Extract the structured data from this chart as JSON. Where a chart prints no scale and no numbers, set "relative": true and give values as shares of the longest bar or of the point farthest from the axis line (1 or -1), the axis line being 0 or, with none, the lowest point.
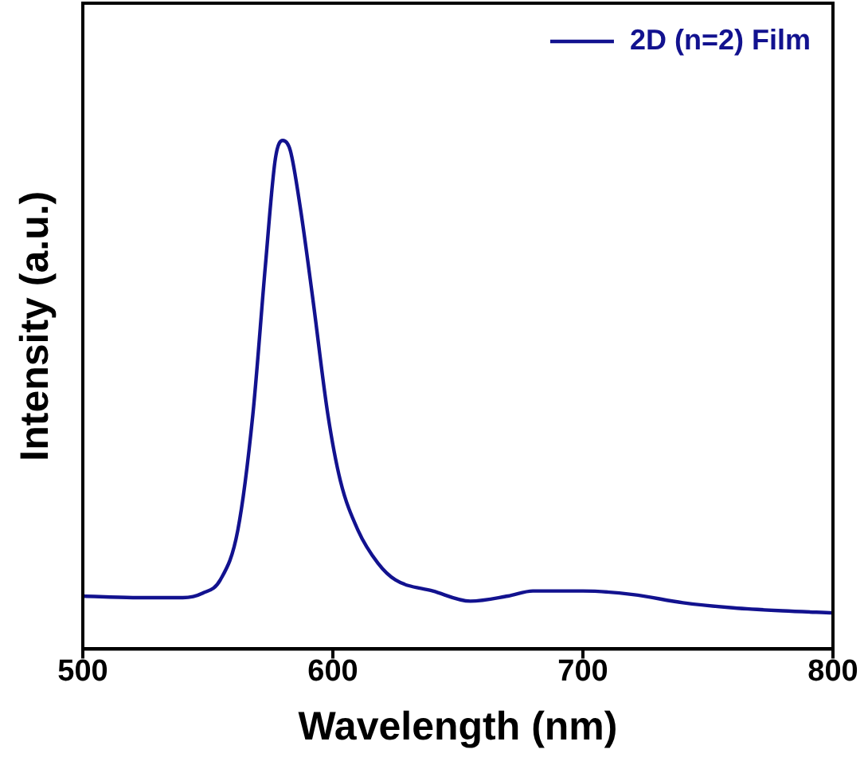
{
  "chart_data": {
    "type": "line",
    "xlabel": "Wavelength (nm)",
    "ylabel": "Intensity (a.u.)",
    "relative": true,
    "xlim": [
      500,
      800
    ],
    "xticks": [
      500,
      600,
      700,
      800
    ],
    "legend": "top right",
    "marker": "none",
    "line_style": "solid",
    "grid": false,
    "series": [
      {
        "name": "2D (n=2) Film",
        "color": "#12128f",
        "x": [
          500,
          520,
          540,
          548,
          555,
          562,
          568,
          573,
          577,
          580,
          583,
          587,
          592,
          598,
          603,
          610,
          618,
          625,
          640,
          655,
          670,
          680,
          700,
          720,
          740,
          760,
          780,
          800
        ],
        "values": [
          0.104,
          0.101,
          0.101,
          0.11,
          0.136,
          0.234,
          0.461,
          0.753,
          0.964,
          1,
          0.98,
          0.867,
          0.688,
          0.461,
          0.331,
          0.234,
          0.169,
          0.136,
          0.114,
          0.094,
          0.104,
          0.114,
          0.114,
          0.107,
          0.091,
          0.081,
          0.075,
          0.071
        ]
      }
    ]
  }
}
